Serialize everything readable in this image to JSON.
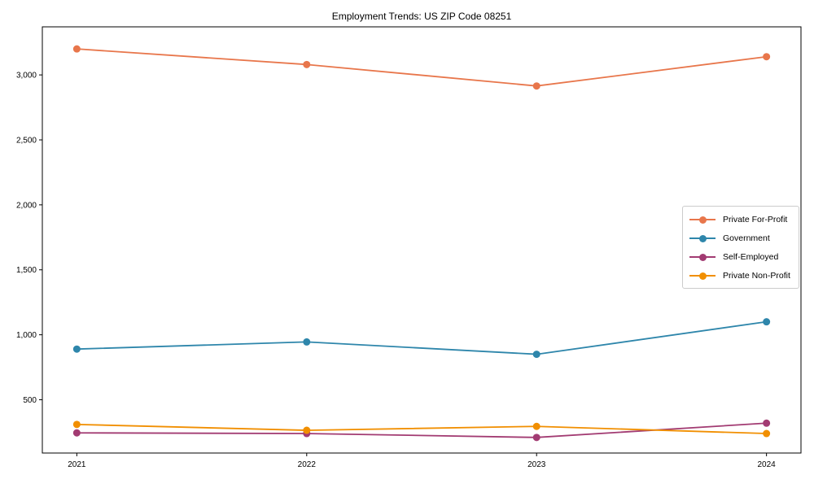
{
  "title": "Employment Trends: US ZIP Code 08251",
  "chart_data": {
    "type": "line",
    "title": "Employment Trends: US ZIP Code 08251",
    "xlabel": "",
    "ylabel": "",
    "x": [
      2021,
      2022,
      2023,
      2024
    ],
    "xtick_labels": [
      "2021",
      "2022",
      "2023",
      "2024"
    ],
    "series": [
      {
        "name": "Private For-Profit",
        "color": "#E8764B",
        "values": [
          3200,
          3080,
          2915,
          3140
        ]
      },
      {
        "name": "Government",
        "color": "#2E86AB",
        "values": [
          890,
          945,
          850,
          1100
        ]
      },
      {
        "name": "Self-Employed",
        "color": "#A23B72",
        "values": [
          245,
          240,
          210,
          320
        ]
      },
      {
        "name": "Private Non-Profit",
        "color": "#F18F01",
        "values": [
          310,
          265,
          295,
          240
        ]
      }
    ],
    "yticks": [
      500,
      1000,
      1500,
      2000,
      2500,
      3000
    ],
    "ytick_labels": [
      "500",
      "1,000",
      "1,500",
      "2,000",
      "2,500",
      "3,000"
    ],
    "ylim": [
      90,
      3370
    ],
    "xlim": [
      2020.85,
      2024.15
    ],
    "grid": false,
    "legend_position": "center right",
    "marker": "circle",
    "frame": "box"
  }
}
